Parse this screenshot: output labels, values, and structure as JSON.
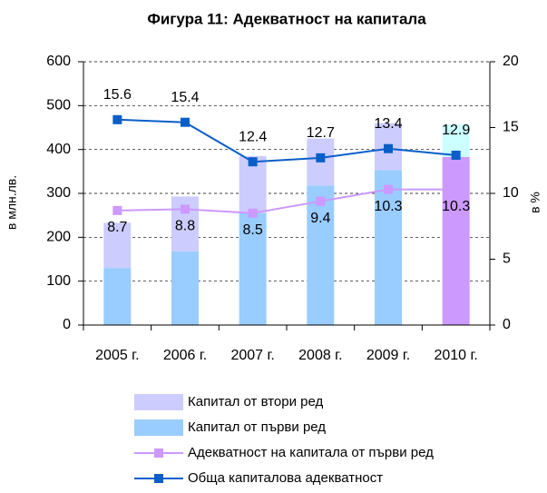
{
  "chart_data": {
    "type": "bar",
    "title": "Фигура 11: Адекватност на капитала",
    "ylabel": "в млн.лв.",
    "y2label": "в %",
    "categories": [
      "2005 г.",
      "2006 г.",
      "2007 г.",
      "2008 г.",
      "2009 г.",
      "2010 г."
    ],
    "ylim": [
      0,
      600
    ],
    "yticks": [
      0,
      100,
      200,
      300,
      400,
      500,
      600
    ],
    "y2lim": [
      0,
      20
    ],
    "y2ticks": [
      0,
      5,
      10,
      15,
      20
    ],
    "grid": true,
    "stacked": true,
    "legend": "bottom",
    "series": [
      {
        "name": "Капитал от втори ред",
        "type": "bar",
        "color": "#ccccff",
        "point_colors": [
          "#ccccff",
          "#ccccff",
          "#ccccff",
          "#ccccff",
          "#ccccff",
          "#ccffff"
        ],
        "values": [
          103,
          125,
          130,
          107,
          107,
          74
        ]
      },
      {
        "name": "Капитал от първи ред",
        "type": "bar",
        "color": "#99ccff",
        "point_colors": [
          "#99ccff",
          "#99ccff",
          "#99ccff",
          "#99ccff",
          "#99ccff",
          "#cc99ff"
        ],
        "values": [
          130,
          168,
          255,
          318,
          353,
          383
        ]
      },
      {
        "name": "Адекватност на капитала от първи ред",
        "type": "line",
        "axis": "y2",
        "color": "#cc99ff",
        "values": [
          8.7,
          8.8,
          8.5,
          9.4,
          10.3,
          10.3
        ]
      },
      {
        "name": "Обща капиталова адекватност",
        "type": "line",
        "axis": "y2",
        "color": "#0a5ec8",
        "values": [
          15.6,
          15.4,
          12.4,
          12.7,
          13.4,
          12.9
        ]
      }
    ]
  }
}
